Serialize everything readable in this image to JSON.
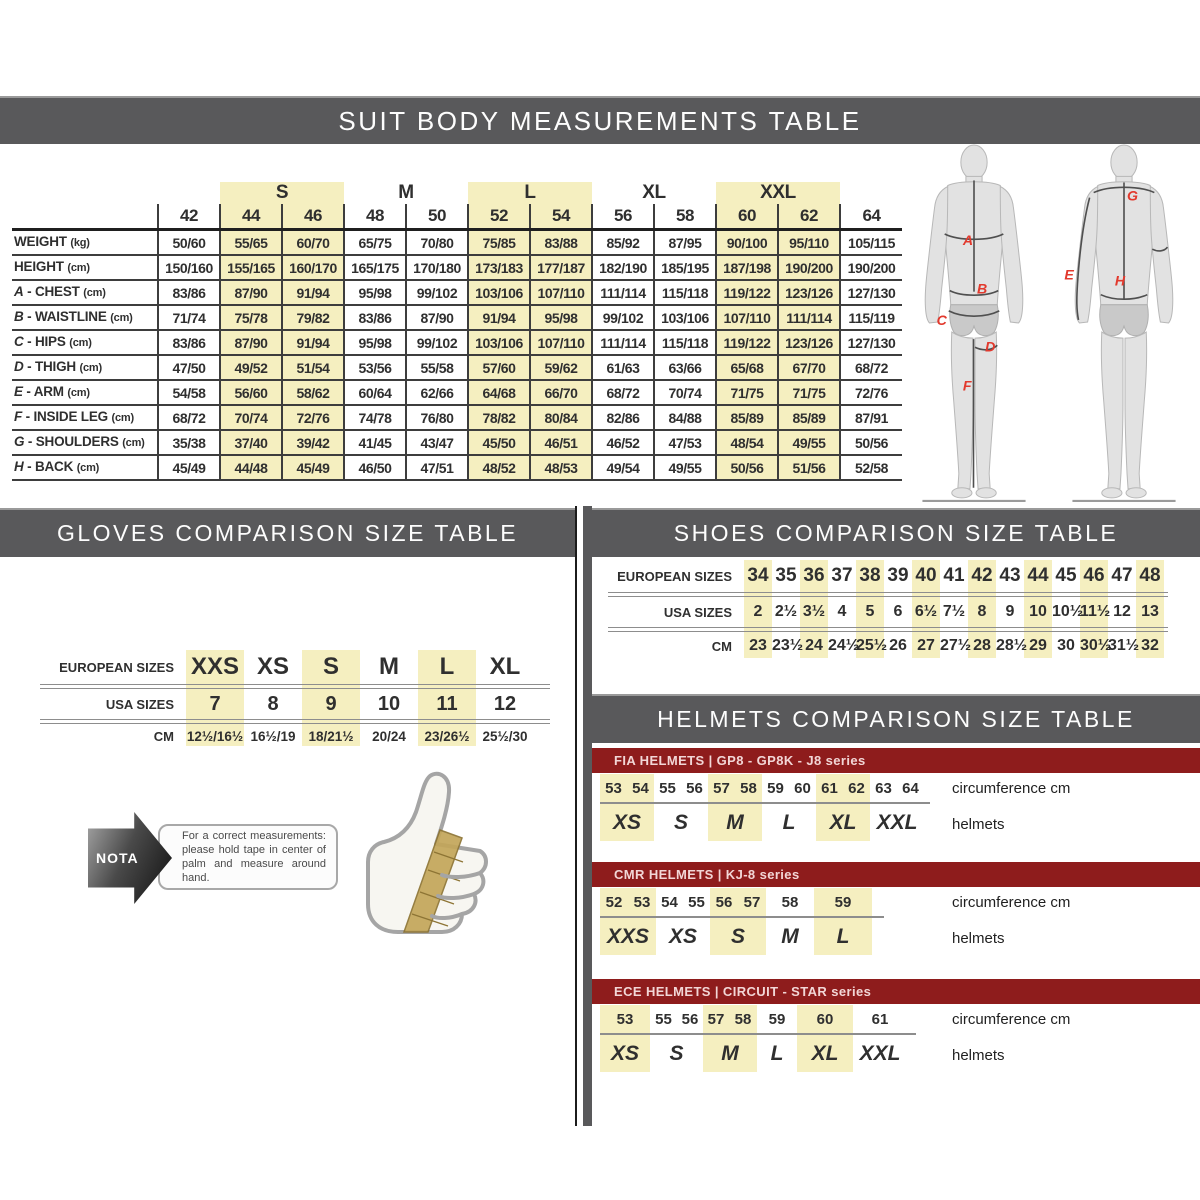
{
  "banners": {
    "suit": "SUIT BODY MEASUREMENTS TABLE",
    "gloves": "GLOVES COMPARISON SIZE TABLE",
    "shoes": "SHOES COMPARISON SIZE TABLE",
    "helmets": "HELMETS COMPARISON SIZE TABLE"
  },
  "colors": {
    "banner_bg": "#59595b",
    "highlight": "#f5efc0",
    "red_banner_bg": "#8e1c1c",
    "red_banner_text": "#f2d6d6",
    "figure_letter": "#e2392d"
  },
  "suit_table": {
    "groups": [
      {
        "label": "S",
        "highlight": true
      },
      {
        "label": "M",
        "highlight": false
      },
      {
        "label": "L",
        "highlight": true
      },
      {
        "label": "XL",
        "highlight": false
      },
      {
        "label": "XXL",
        "highlight": true
      }
    ],
    "sizes": [
      "42",
      "44",
      "46",
      "48",
      "50",
      "52",
      "54",
      "56",
      "58",
      "60",
      "62",
      "64"
    ],
    "highlighted_size_indexes": [
      1,
      2,
      5,
      6,
      9,
      10
    ],
    "rows": [
      {
        "letter": "",
        "label": "WEIGHT",
        "unit": "(kg)",
        "values": [
          "50/60",
          "55/65",
          "60/70",
          "65/75",
          "70/80",
          "75/85",
          "83/88",
          "85/92",
          "87/95",
          "90/100",
          "95/110",
          "105/115"
        ]
      },
      {
        "letter": "",
        "label": "HEIGHT",
        "unit": "(cm)",
        "values": [
          "150/160",
          "155/165",
          "160/170",
          "165/175",
          "170/180",
          "173/183",
          "177/187",
          "182/190",
          "185/195",
          "187/198",
          "190/200",
          "190/200"
        ]
      },
      {
        "letter": "A",
        "label": "CHEST",
        "unit": "(cm)",
        "values": [
          "83/86",
          "87/90",
          "91/94",
          "95/98",
          "99/102",
          "103/106",
          "107/110",
          "111/114",
          "115/118",
          "119/122",
          "123/126",
          "127/130"
        ]
      },
      {
        "letter": "B",
        "label": "WAISTLINE",
        "unit": "(cm)",
        "values": [
          "71/74",
          "75/78",
          "79/82",
          "83/86",
          "87/90",
          "91/94",
          "95/98",
          "99/102",
          "103/106",
          "107/110",
          "111/114",
          "115/119"
        ]
      },
      {
        "letter": "C",
        "label": "HIPS",
        "unit": "(cm)",
        "values": [
          "83/86",
          "87/90",
          "91/94",
          "95/98",
          "99/102",
          "103/106",
          "107/110",
          "111/114",
          "115/118",
          "119/122",
          "123/126",
          "127/130"
        ]
      },
      {
        "letter": "D",
        "label": "THIGH",
        "unit": "(cm)",
        "values": [
          "47/50",
          "49/52",
          "51/54",
          "53/56",
          "55/58",
          "57/60",
          "59/62",
          "61/63",
          "63/66",
          "65/68",
          "67/70",
          "68/72"
        ]
      },
      {
        "letter": "E",
        "label": "ARM",
        "unit": "(cm)",
        "values": [
          "54/58",
          "56/60",
          "58/62",
          "60/64",
          "62/66",
          "64/68",
          "66/70",
          "68/72",
          "70/74",
          "71/75",
          "71/75",
          "72/76"
        ]
      },
      {
        "letter": "F",
        "label": "INSIDE LEG",
        "unit": "(cm)",
        "values": [
          "68/72",
          "70/74",
          "72/76",
          "74/78",
          "76/80",
          "78/82",
          "80/84",
          "82/86",
          "84/88",
          "85/89",
          "85/89",
          "87/91"
        ]
      },
      {
        "letter": "G",
        "label": "SHOULDERS",
        "unit": "(cm)",
        "values": [
          "35/38",
          "37/40",
          "39/42",
          "41/45",
          "43/47",
          "45/50",
          "46/51",
          "46/52",
          "47/53",
          "48/54",
          "49/55",
          "50/56"
        ]
      },
      {
        "letter": "H",
        "label": "BACK",
        "unit": "(cm)",
        "values": [
          "45/49",
          "44/48",
          "45/49",
          "46/50",
          "47/51",
          "48/52",
          "48/53",
          "49/54",
          "49/55",
          "50/56",
          "51/56",
          "52/58"
        ]
      }
    ]
  },
  "figures": {
    "front_letters": [
      "A",
      "B",
      "C",
      "D",
      "F"
    ],
    "back_letters": [
      "G",
      "E",
      "H"
    ]
  },
  "gloves_table": {
    "row_labels": [
      "EUROPEAN SIZES",
      "USA SIZES",
      "CM"
    ],
    "european": [
      "XXS",
      "XS",
      "S",
      "M",
      "L",
      "XL"
    ],
    "usa": [
      "7",
      "8",
      "9",
      "10",
      "11",
      "12"
    ],
    "cm": [
      "12½/16½",
      "16½/19",
      "18/21½",
      "20/24",
      "23/26½",
      "25½/30"
    ],
    "highlighted_indexes": [
      0,
      2,
      4
    ]
  },
  "shoes_table": {
    "row_labels": [
      "EUROPEAN SIZES",
      "USA SIZES",
      "CM"
    ],
    "european": [
      "34",
      "35",
      "36",
      "37",
      "38",
      "39",
      "40",
      "41",
      "42",
      "43",
      "44",
      "45",
      "46",
      "47",
      "48"
    ],
    "usa": [
      "2",
      "2½",
      "3½",
      "4",
      "5",
      "6",
      "6½",
      "7½",
      "8",
      "9",
      "10",
      "10½",
      "11½",
      "12",
      "13"
    ],
    "cm": [
      "23",
      "23½",
      "24",
      "24½",
      "25½",
      "26",
      "27",
      "27½",
      "28",
      "28½",
      "29",
      "30",
      "30½",
      "31½",
      "32"
    ],
    "highlighted_indexes": [
      0,
      2,
      4,
      6,
      8,
      10,
      12,
      14
    ]
  },
  "helmets": {
    "column_labels": {
      "circumference": "circumference cm",
      "sizes": "helmets"
    },
    "sections": [
      {
        "banner": "FIA HELMETS | GP8 - GP8K - J8 series",
        "circumferences": [
          "53",
          "54",
          "55",
          "56",
          "57",
          "58",
          "59",
          "60",
          "61",
          "62",
          "63",
          "64"
        ],
        "sizes": [
          {
            "label": "XS",
            "span": 2,
            "highlight": true
          },
          {
            "label": "S",
            "span": 2,
            "highlight": false
          },
          {
            "label": "M",
            "span": 2,
            "highlight": true
          },
          {
            "label": "L",
            "span": 2,
            "highlight": false
          },
          {
            "label": "XL",
            "span": 2,
            "highlight": true
          },
          {
            "label": "XXL",
            "span": 2,
            "highlight": false
          }
        ]
      },
      {
        "banner": "CMR HELMETS | KJ-8 series",
        "circumferences": [
          "52",
          "53",
          "54",
          "55",
          "56",
          "57",
          "58",
          "59"
        ],
        "sizes": [
          {
            "label": "XXS",
            "span": 2,
            "highlight": true
          },
          {
            "label": "XS",
            "span": 2,
            "highlight": false
          },
          {
            "label": "S",
            "span": 2,
            "highlight": true
          },
          {
            "label": "M",
            "span": 1,
            "highlight": false
          },
          {
            "label": "L",
            "span": 1,
            "highlight": true
          }
        ]
      },
      {
        "banner": "ECE HELMETS | CIRCUIT - STAR series",
        "circumferences": [
          "53",
          "55",
          "56",
          "57",
          "58",
          "59",
          "60",
          "61"
        ],
        "sizes": [
          {
            "label": "XS",
            "span": 1,
            "highlight": true
          },
          {
            "label": "S",
            "span": 2,
            "highlight": false
          },
          {
            "label": "M",
            "span": 2,
            "highlight": true
          },
          {
            "label": "L",
            "span": 1,
            "highlight": false
          },
          {
            "label": "XL",
            "span": 1,
            "highlight": true
          },
          {
            "label": "XXL",
            "span": 1,
            "highlight": false
          }
        ]
      }
    ]
  },
  "nota": {
    "badge": "NOTA",
    "text": "For a correct measurements: please hold tape in center of palm and measure around hand."
  }
}
